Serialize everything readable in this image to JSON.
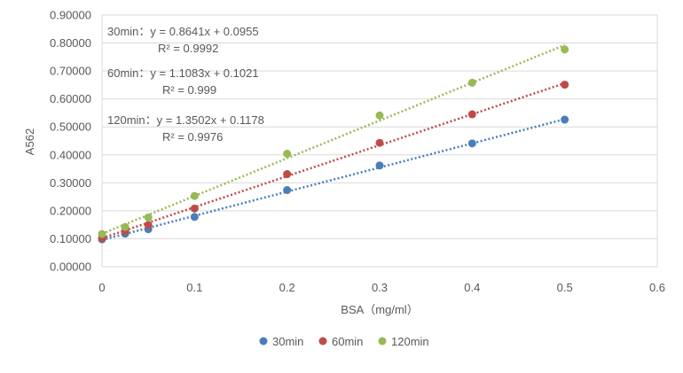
{
  "chart_data": {
    "type": "scatter",
    "xlabel": "BSA（mg/ml）",
    "ylabel": "A562",
    "xlim": [
      0,
      0.6
    ],
    "ylim": [
      0,
      0.9
    ],
    "x_ticks": [
      "0",
      "0.1",
      "0.2",
      "0.3",
      "0.4",
      "0.5",
      "0.6"
    ],
    "y_ticks": [
      "0.00000",
      "0.10000",
      "0.20000",
      "0.30000",
      "0.40000",
      "0.50000",
      "0.60000",
      "0.70000",
      "0.80000",
      "0.90000"
    ],
    "grid": "horizontal",
    "legend_position": "bottom",
    "series": [
      {
        "name": "30min",
        "color": "#4a7ebb",
        "x": [
          0,
          0.025,
          0.05,
          0.1,
          0.2,
          0.3,
          0.4,
          0.5
        ],
        "y": [
          0.098,
          0.118,
          0.134,
          0.178,
          0.274,
          0.362,
          0.441,
          0.526
        ],
        "trend": {
          "slope": 0.8641,
          "intercept": 0.0955
        },
        "equation": "30min：y = 0.8641x + 0.0955",
        "r2": "R² = 0.9992"
      },
      {
        "name": "60min",
        "color": "#be4b48",
        "x": [
          0,
          0.025,
          0.05,
          0.1,
          0.2,
          0.3,
          0.4,
          0.5
        ],
        "y": [
          0.102,
          0.127,
          0.149,
          0.208,
          0.331,
          0.443,
          0.545,
          0.651
        ],
        "trend": {
          "slope": 1.1083,
          "intercept": 0.1021
        },
        "equation": "60min：y = 1.1083x + 0.1021",
        "r2": "R² = 0.999"
      },
      {
        "name": "120min",
        "color": "#98b954",
        "x": [
          0,
          0.025,
          0.05,
          0.1,
          0.2,
          0.3,
          0.4,
          0.5
        ],
        "y": [
          0.117,
          0.142,
          0.176,
          0.253,
          0.404,
          0.541,
          0.658,
          0.777
        ],
        "trend": {
          "slope": 1.3502,
          "intercept": 0.1178
        },
        "equation": "120min：y = 1.3502x + 0.1178",
        "r2": "R² = 0.9976"
      }
    ]
  }
}
